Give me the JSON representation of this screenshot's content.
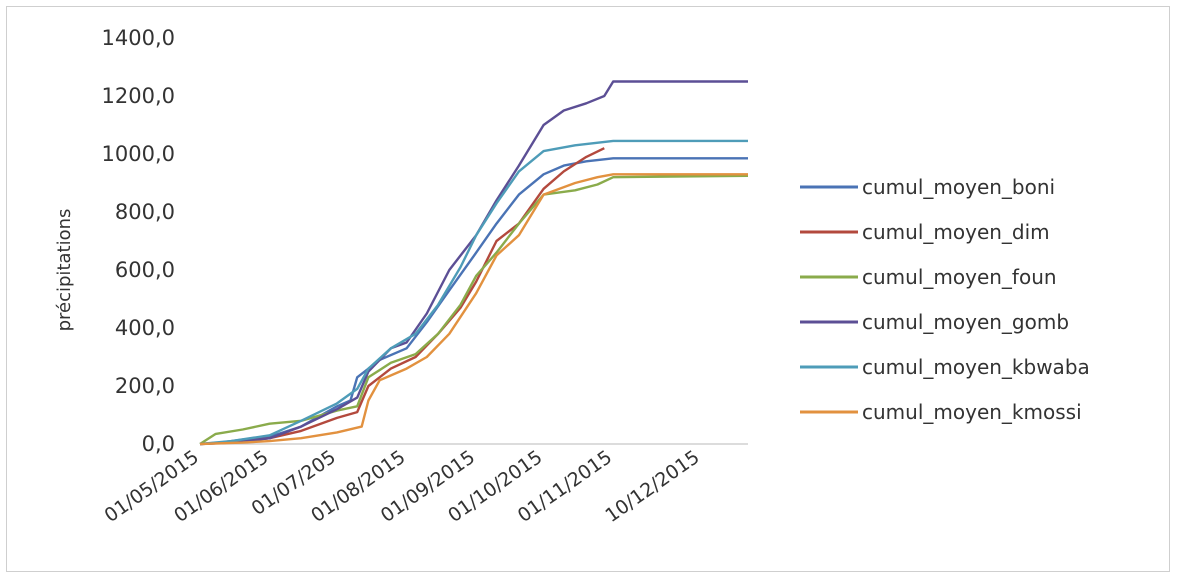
{
  "chart_data": {
    "type": "line",
    "title": "",
    "xlabel": "",
    "ylabel": "précipitations",
    "ylim": [
      0,
      1400
    ],
    "yticks": [
      "0,0",
      "200,0",
      "400,0",
      "600,0",
      "800,0",
      "1000,0",
      "1200,0",
      "1400,0"
    ],
    "xtick_labels": [
      "01/05/2015",
      "01/06/2015",
      "01/07/205",
      "01/08/2015",
      "01/09/2015",
      "01/10/2015",
      "01/11/2015",
      "10/12/2015"
    ],
    "xlim": [
      "2015-05-01",
      "2015-12-31"
    ],
    "grid": false,
    "legend": "right",
    "series": [
      {
        "name": "cumul_moyen_boni",
        "color": "#4a73b5",
        "points": [
          [
            "2015-05-01",
            0
          ],
          [
            "2015-05-10",
            5
          ],
          [
            "2015-05-20",
            15
          ],
          [
            "2015-06-01",
            25
          ],
          [
            "2015-06-15",
            60
          ],
          [
            "2015-07-01",
            130
          ],
          [
            "2015-07-07",
            150
          ],
          [
            "2015-07-10",
            230
          ],
          [
            "2015-07-20",
            290
          ],
          [
            "2015-08-01",
            330
          ],
          [
            "2015-08-10",
            420
          ],
          [
            "2015-08-20",
            530
          ],
          [
            "2015-09-01",
            660
          ],
          [
            "2015-09-10",
            760
          ],
          [
            "2015-09-20",
            860
          ],
          [
            "2015-10-01",
            930
          ],
          [
            "2015-10-10",
            960
          ],
          [
            "2015-10-20",
            975
          ],
          [
            "2015-11-01",
            985
          ],
          [
            "2015-12-31",
            985
          ]
        ]
      },
      {
        "name": "cumul_moyen_dim",
        "color": "#b3493d",
        "points": [
          [
            "2015-05-01",
            0
          ],
          [
            "2015-05-15",
            5
          ],
          [
            "2015-06-01",
            20
          ],
          [
            "2015-06-15",
            45
          ],
          [
            "2015-07-01",
            90
          ],
          [
            "2015-07-10",
            110
          ],
          [
            "2015-07-15",
            200
          ],
          [
            "2015-07-25",
            260
          ],
          [
            "2015-08-05",
            300
          ],
          [
            "2015-08-15",
            380
          ],
          [
            "2015-08-25",
            470
          ],
          [
            "2015-09-01",
            560
          ],
          [
            "2015-09-10",
            700
          ],
          [
            "2015-09-20",
            760
          ],
          [
            "2015-10-01",
            880
          ],
          [
            "2015-10-10",
            940
          ],
          [
            "2015-10-20",
            990
          ],
          [
            "2015-10-28",
            1020
          ]
        ]
      },
      {
        "name": "cumul_moyen_foun",
        "color": "#8aab4b",
        "points": [
          [
            "2015-05-01",
            0
          ],
          [
            "2015-05-08",
            35
          ],
          [
            "2015-05-20",
            50
          ],
          [
            "2015-06-01",
            70
          ],
          [
            "2015-06-15",
            80
          ],
          [
            "2015-07-01",
            115
          ],
          [
            "2015-07-10",
            130
          ],
          [
            "2015-07-15",
            230
          ],
          [
            "2015-07-25",
            280
          ],
          [
            "2015-08-05",
            310
          ],
          [
            "2015-08-15",
            380
          ],
          [
            "2015-08-25",
            480
          ],
          [
            "2015-09-01",
            580
          ],
          [
            "2015-09-10",
            660
          ],
          [
            "2015-09-20",
            760
          ],
          [
            "2015-10-01",
            860
          ],
          [
            "2015-10-15",
            875
          ],
          [
            "2015-10-25",
            895
          ],
          [
            "2015-11-01",
            920
          ],
          [
            "2015-12-31",
            925
          ]
        ]
      },
      {
        "name": "cumul_moyen_gomb",
        "color": "#5c4f95",
        "points": [
          [
            "2015-05-01",
            0
          ],
          [
            "2015-05-15",
            5
          ],
          [
            "2015-06-01",
            20
          ],
          [
            "2015-06-15",
            60
          ],
          [
            "2015-07-01",
            120
          ],
          [
            "2015-07-10",
            160
          ],
          [
            "2015-07-15",
            250
          ],
          [
            "2015-07-25",
            330
          ],
          [
            "2015-08-01",
            350
          ],
          [
            "2015-08-10",
            450
          ],
          [
            "2015-08-20",
            600
          ],
          [
            "2015-09-01",
            720
          ],
          [
            "2015-09-10",
            840
          ],
          [
            "2015-09-20",
            960
          ],
          [
            "2015-10-01",
            1100
          ],
          [
            "2015-10-10",
            1150
          ],
          [
            "2015-10-20",
            1175
          ],
          [
            "2015-10-28",
            1200
          ],
          [
            "2015-11-01",
            1250
          ],
          [
            "2015-12-31",
            1250
          ]
        ]
      },
      {
        "name": "cumul_moyen_kbwaba",
        "color": "#4e9cb8",
        "points": [
          [
            "2015-05-01",
            0
          ],
          [
            "2015-05-15",
            10
          ],
          [
            "2015-06-01",
            30
          ],
          [
            "2015-06-15",
            80
          ],
          [
            "2015-07-01",
            140
          ],
          [
            "2015-07-10",
            190
          ],
          [
            "2015-07-15",
            260
          ],
          [
            "2015-07-25",
            330
          ],
          [
            "2015-08-05",
            380
          ],
          [
            "2015-08-15",
            480
          ],
          [
            "2015-08-25",
            610
          ],
          [
            "2015-09-01",
            720
          ],
          [
            "2015-09-10",
            830
          ],
          [
            "2015-09-20",
            940
          ],
          [
            "2015-10-01",
            1010
          ],
          [
            "2015-10-15",
            1030
          ],
          [
            "2015-11-01",
            1045
          ],
          [
            "2015-12-31",
            1045
          ]
        ]
      },
      {
        "name": "cumul_moyen_kmossi",
        "color": "#e2913f",
        "points": [
          [
            "2015-05-01",
            0
          ],
          [
            "2015-05-20",
            5
          ],
          [
            "2015-06-01",
            10
          ],
          [
            "2015-06-15",
            20
          ],
          [
            "2015-07-01",
            40
          ],
          [
            "2015-07-12",
            60
          ],
          [
            "2015-07-15",
            150
          ],
          [
            "2015-07-20",
            220
          ],
          [
            "2015-08-01",
            260
          ],
          [
            "2015-08-10",
            300
          ],
          [
            "2015-08-20",
            380
          ],
          [
            "2015-09-01",
            520
          ],
          [
            "2015-09-10",
            650
          ],
          [
            "2015-09-20",
            720
          ],
          [
            "2015-10-01",
            860
          ],
          [
            "2015-10-15",
            900
          ],
          [
            "2015-10-25",
            920
          ],
          [
            "2015-11-01",
            930
          ],
          [
            "2015-12-31",
            930
          ]
        ]
      }
    ]
  }
}
